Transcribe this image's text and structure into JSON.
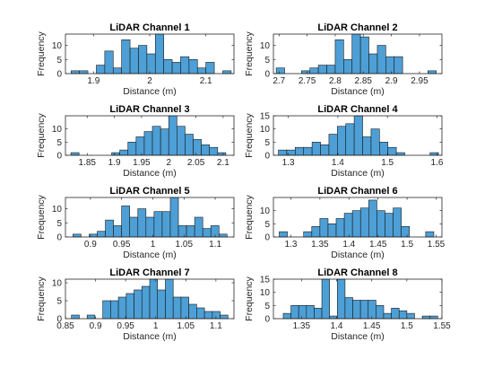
{
  "chart_data": [
    {
      "type": "bar",
      "title": "LiDAR Channel 1",
      "xlabel": "Distance (m)",
      "ylabel": "Frequency",
      "xlim": [
        1.85,
        2.15
      ],
      "ylim": [
        0,
        14
      ],
      "xticks": [
        1.9,
        2,
        2.1
      ],
      "yticks": [
        0,
        5,
        10
      ],
      "bin_edges": [
        1.86,
        1.875,
        1.89,
        1.905,
        1.92,
        1.935,
        1.95,
        1.965,
        1.98,
        1.995,
        2.01,
        2.025,
        2.04,
        2.055,
        2.07,
        2.085,
        2.1,
        2.115,
        2.13,
        2.145
      ],
      "values": [
        1,
        1,
        0,
        3,
        8,
        2,
        12,
        9,
        10,
        7,
        14,
        5,
        4,
        6,
        5,
        2,
        4,
        0,
        1
      ]
    },
    {
      "type": "bar",
      "title": "LiDAR Channel 2",
      "xlabel": "Distance (m)",
      "ylabel": "Frequency",
      "xlim": [
        2.69,
        2.99
      ],
      "ylim": [
        0,
        14
      ],
      "xticks": [
        2.7,
        2.75,
        2.8,
        2.85,
        2.9,
        2.95
      ],
      "yticks": [
        0,
        5,
        10
      ],
      "bin_edges": [
        2.695,
        2.71,
        2.725,
        2.74,
        2.755,
        2.77,
        2.785,
        2.8,
        2.815,
        2.83,
        2.845,
        2.86,
        2.875,
        2.89,
        2.905,
        2.92,
        2.935,
        2.95,
        2.965,
        2.98
      ],
      "values": [
        2,
        0,
        0,
        1,
        2,
        3,
        3,
        12,
        5,
        14,
        13,
        7,
        10,
        6,
        6,
        0,
        0,
        0,
        1
      ]
    },
    {
      "type": "bar",
      "title": "LiDAR Channel 3",
      "xlabel": "Distance (m)",
      "ylabel": "Frequency",
      "xlim": [
        1.81,
        2.12
      ],
      "ylim": [
        0,
        15
      ],
      "xticks": [
        1.85,
        1.9,
        1.95,
        2,
        2.05,
        2.1
      ],
      "yticks": [
        0,
        5,
        10
      ],
      "bin_edges": [
        1.82,
        1.835,
        1.85,
        1.865,
        1.88,
        1.895,
        1.91,
        1.925,
        1.94,
        1.955,
        1.97,
        1.985,
        2.0,
        2.015,
        2.03,
        2.045,
        2.06,
        2.075,
        2.09,
        2.105
      ],
      "values": [
        1,
        0,
        0,
        0,
        0,
        1,
        2,
        5,
        7,
        9,
        11,
        10,
        15,
        11,
        8,
        6,
        4,
        3,
        1
      ]
    },
    {
      "type": "bar",
      "title": "LiDAR Channel 4",
      "xlabel": "Distance (m)",
      "ylabel": "Frequency",
      "xlim": [
        1.27,
        1.61
      ],
      "ylim": [
        0,
        15
      ],
      "xticks": [
        1.3,
        1.4,
        1.5,
        1.6
      ],
      "yticks": [
        0,
        5,
        10,
        15
      ],
      "bin_edges": [
        1.28,
        1.297,
        1.314,
        1.331,
        1.348,
        1.365,
        1.382,
        1.399,
        1.416,
        1.433,
        1.45,
        1.467,
        1.484,
        1.501,
        1.518,
        1.535,
        1.552,
        1.569,
        1.586,
        1.603
      ],
      "values": [
        2,
        2,
        3,
        3,
        5,
        4,
        8,
        11,
        12,
        15,
        7,
        10,
        5,
        3,
        1,
        0,
        0,
        0,
        1
      ]
    },
    {
      "type": "bar",
      "title": "LiDAR Channel 5",
      "xlabel": "Distance (m)",
      "ylabel": "Frequency",
      "xlim": [
        0.86,
        1.13
      ],
      "ylim": [
        0,
        14
      ],
      "xticks": [
        0.9,
        0.95,
        1,
        1.05,
        1.1
      ],
      "yticks": [
        0,
        5,
        10
      ],
      "bin_edges": [
        0.872,
        0.885,
        0.898,
        0.911,
        0.924,
        0.937,
        0.95,
        0.963,
        0.976,
        0.989,
        1.002,
        1.015,
        1.028,
        1.041,
        1.054,
        1.067,
        1.08,
        1.093,
        1.106,
        1.119
      ],
      "values": [
        1,
        0,
        1,
        2,
        6,
        4,
        11,
        7,
        10,
        7,
        9,
        9,
        14,
        4,
        4,
        7,
        3,
        4,
        1
      ]
    },
    {
      "type": "bar",
      "title": "LiDAR Channel 6",
      "xlabel": "Distance (m)",
      "ylabel": "Frequency",
      "xlim": [
        1.27,
        1.56
      ],
      "ylim": [
        0,
        15
      ],
      "xticks": [
        1.3,
        1.35,
        1.4,
        1.45,
        1.5,
        1.55
      ],
      "yticks": [
        0,
        5,
        10
      ],
      "bin_edges": [
        1.28,
        1.294,
        1.308,
        1.322,
        1.336,
        1.35,
        1.364,
        1.378,
        1.392,
        1.406,
        1.42,
        1.434,
        1.448,
        1.462,
        1.476,
        1.49,
        1.504,
        1.518,
        1.532,
        1.546
      ],
      "values": [
        2,
        0,
        0,
        2,
        4,
        7,
        5,
        7,
        9,
        10,
        11,
        14,
        10,
        9,
        11,
        4,
        0,
        0,
        2
      ]
    },
    {
      "type": "bar",
      "title": "LiDAR Channel 7",
      "xlabel": "Distance (m)",
      "ylabel": "Frequency",
      "xlim": [
        0.85,
        1.13
      ],
      "ylim": [
        0,
        11
      ],
      "xticks": [
        0.85,
        0.9,
        0.95,
        1,
        1.05,
        1.1
      ],
      "yticks": [
        0,
        5,
        10
      ],
      "bin_edges": [
        0.86,
        0.873,
        0.886,
        0.899,
        0.912,
        0.925,
        0.938,
        0.951,
        0.964,
        0.977,
        0.99,
        1.003,
        1.016,
        1.029,
        1.042,
        1.055,
        1.068,
        1.081,
        1.094,
        1.107,
        1.12
      ],
      "values": [
        1,
        0,
        1,
        0,
        5,
        5,
        6,
        7,
        8,
        9,
        11,
        8,
        11,
        6,
        6,
        4,
        3,
        2,
        2,
        1
      ]
    },
    {
      "type": "bar",
      "title": "LiDAR Channel 8",
      "xlabel": "Distance (m)",
      "ylabel": "Frequency",
      "xlim": [
        1.31,
        1.55
      ],
      "ylim": [
        0,
        15
      ],
      "xticks": [
        1.35,
        1.4,
        1.45,
        1.5,
        1.55
      ],
      "yticks": [
        0,
        5,
        10,
        15
      ],
      "bin_edges": [
        1.324,
        1.335,
        1.346,
        1.357,
        1.368,
        1.379,
        1.39,
        1.401,
        1.412,
        1.423,
        1.434,
        1.445,
        1.456,
        1.467,
        1.478,
        1.489,
        1.5,
        1.511,
        1.522,
        1.533,
        1.544
      ],
      "values": [
        2,
        5,
        5,
        5,
        4,
        15,
        1,
        15,
        8,
        7,
        7,
        7,
        5,
        2,
        4,
        3,
        2,
        0,
        1,
        1
      ]
    }
  ]
}
